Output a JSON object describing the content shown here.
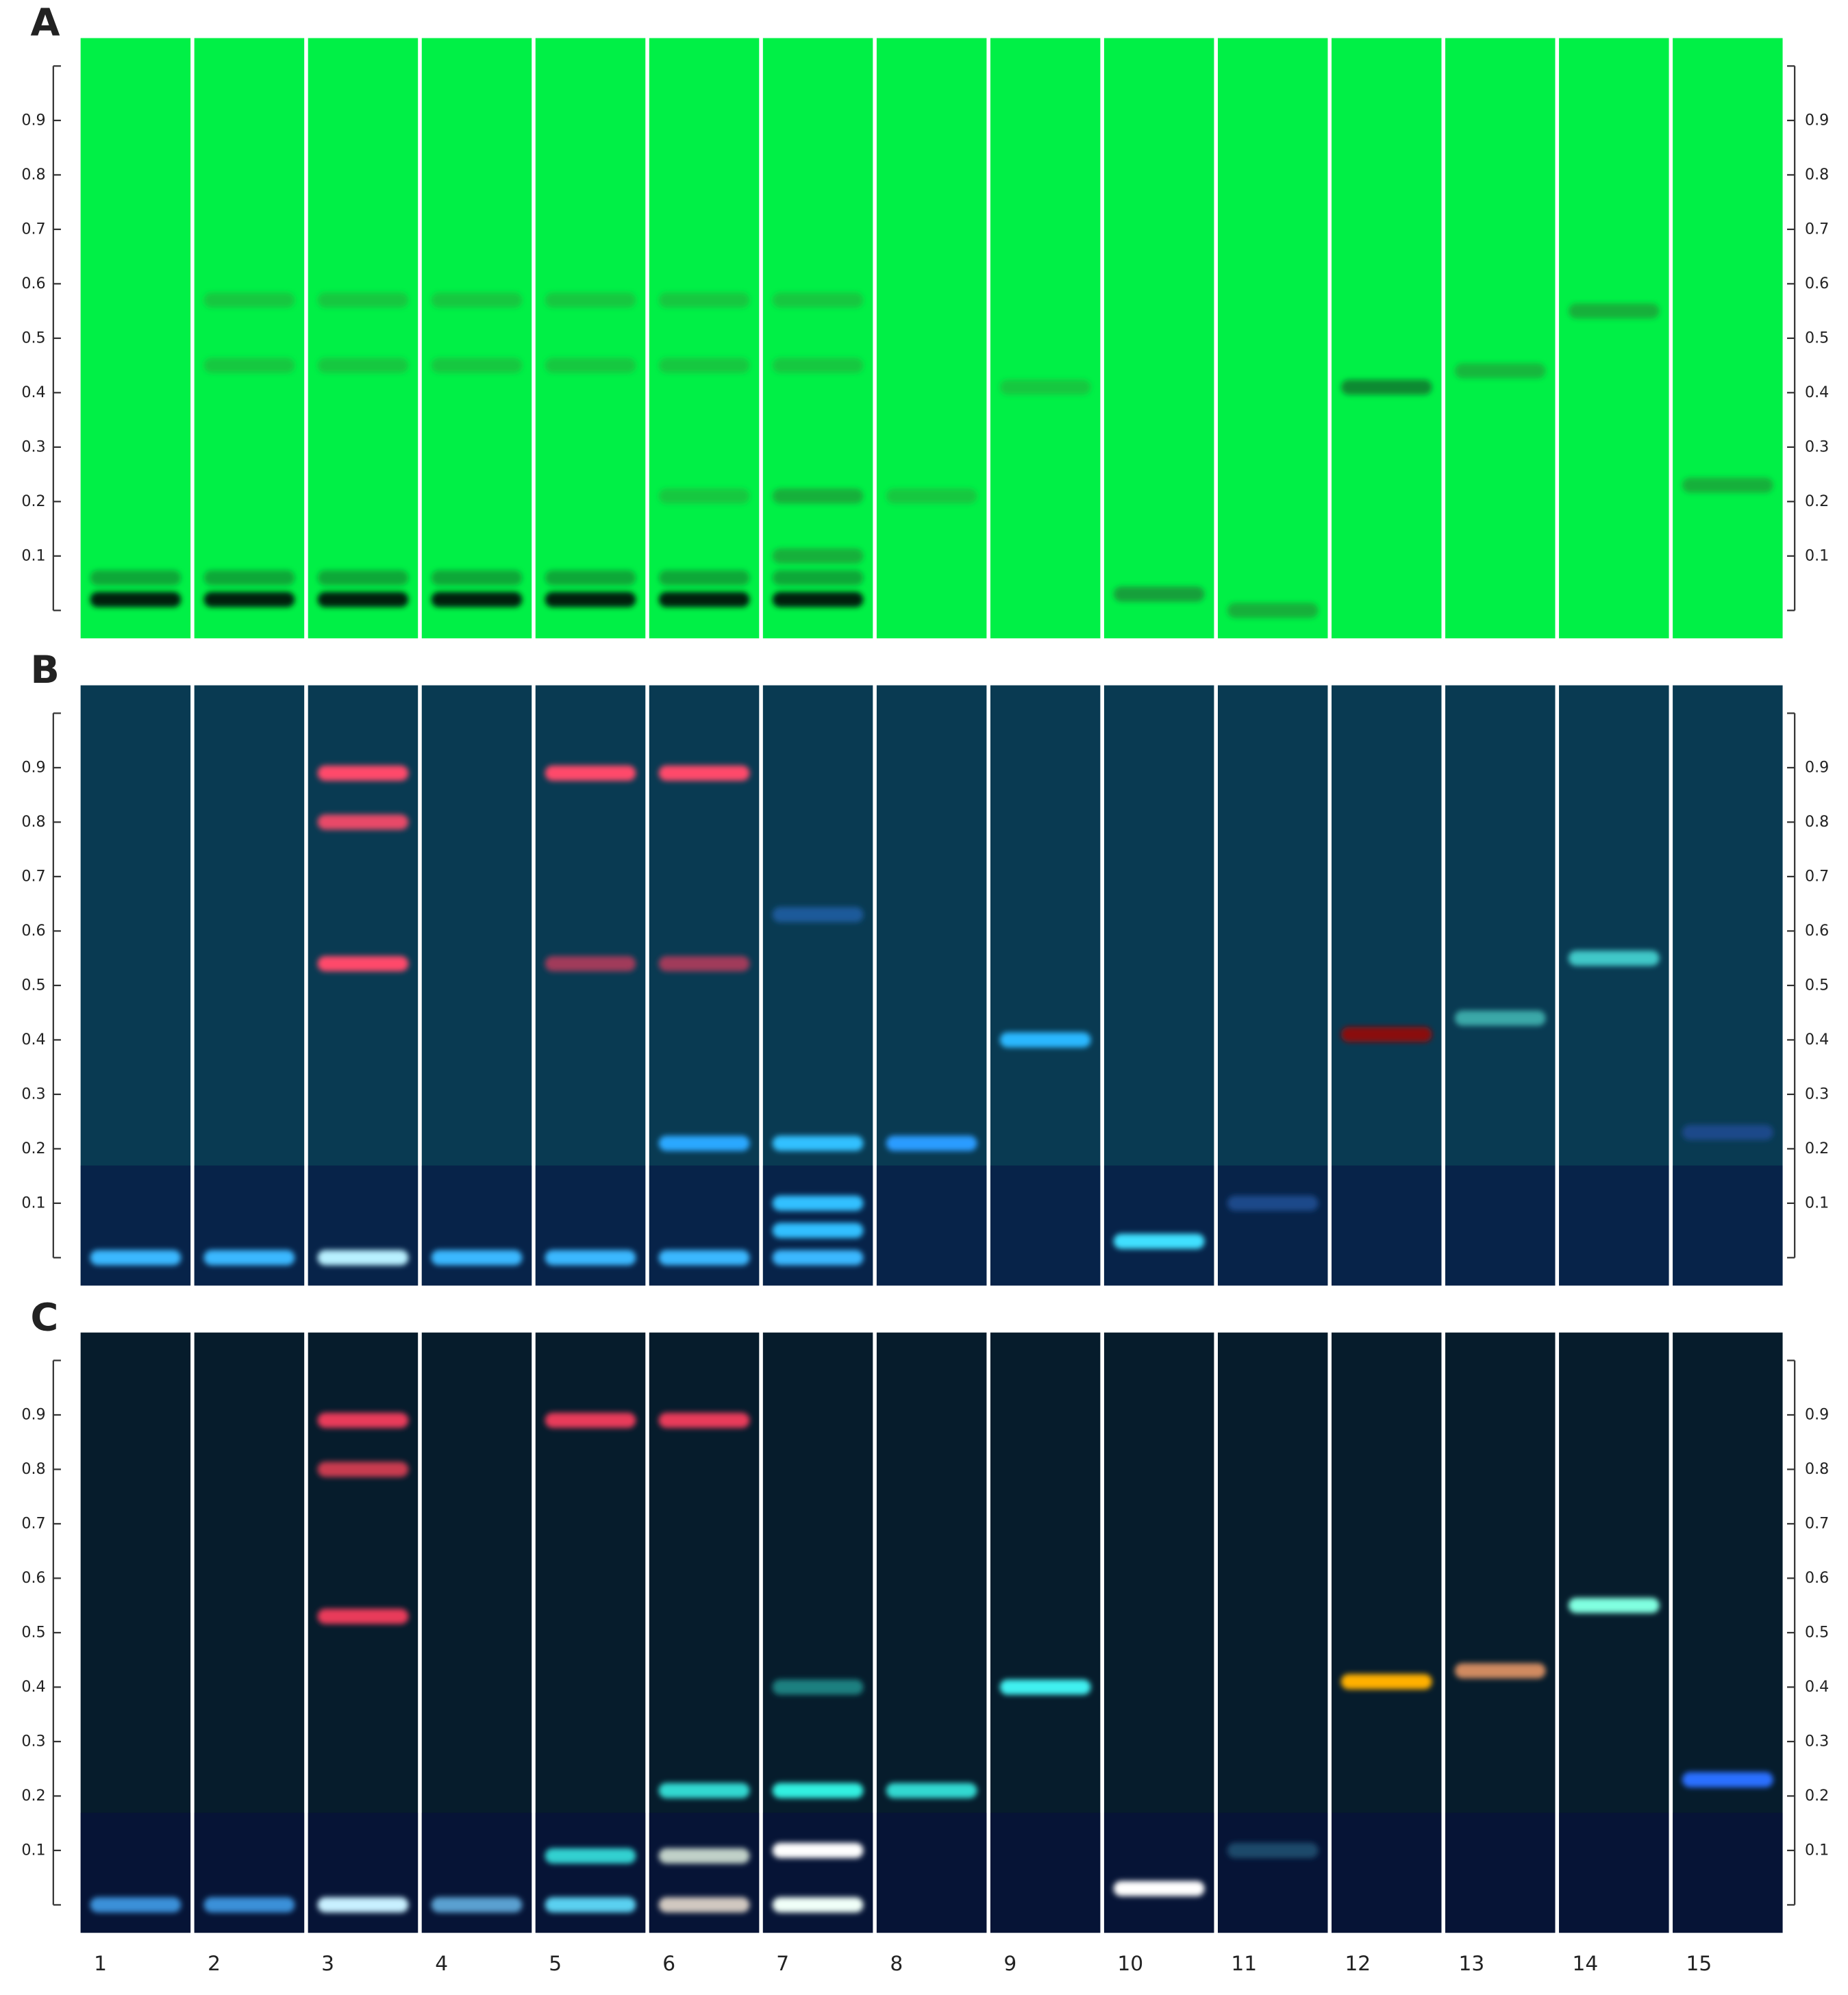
{
  "figure": {
    "lane_labels": [
      "1",
      "2",
      "3",
      "4",
      "5",
      "6",
      "7",
      "8",
      "9",
      "10",
      "11",
      "12",
      "13",
      "14",
      "15"
    ],
    "ylim": [
      0,
      1
    ],
    "yticks": [
      0.1,
      0.2,
      0.3,
      0.4,
      0.5,
      0.6,
      0.7,
      0.8,
      0.9
    ],
    "panels": [
      {
        "label": "A",
        "background": "#00f046",
        "bands": [
          {
            "lane": 1,
            "rf": 0.02,
            "color": "#062010"
          },
          {
            "lane": 2,
            "rf": 0.02,
            "color": "#062010"
          },
          {
            "lane": 3,
            "rf": 0.02,
            "color": "#062010"
          },
          {
            "lane": 4,
            "rf": 0.02,
            "color": "#062010"
          },
          {
            "lane": 5,
            "rf": 0.02,
            "color": "#062010"
          },
          {
            "lane": 6,
            "rf": 0.02,
            "color": "#062010"
          },
          {
            "lane": 7,
            "rf": 0.02,
            "color": "#062010"
          },
          {
            "lane": 1,
            "rf": 0.06,
            "color": "#0fa838"
          },
          {
            "lane": 2,
            "rf": 0.06,
            "color": "#0fa838"
          },
          {
            "lane": 3,
            "rf": 0.06,
            "color": "#0fa838"
          },
          {
            "lane": 4,
            "rf": 0.06,
            "color": "#0fa838"
          },
          {
            "lane": 5,
            "rf": 0.06,
            "color": "#0fa838"
          },
          {
            "lane": 6,
            "rf": 0.06,
            "color": "#0fa838"
          },
          {
            "lane": 7,
            "rf": 0.06,
            "color": "#0fa838"
          },
          {
            "lane": 2,
            "rf": 0.57,
            "color": "#18c840"
          },
          {
            "lane": 3,
            "rf": 0.57,
            "color": "#18c840"
          },
          {
            "lane": 4,
            "rf": 0.57,
            "color": "#18c840"
          },
          {
            "lane": 5,
            "rf": 0.57,
            "color": "#18c840"
          },
          {
            "lane": 6,
            "rf": 0.57,
            "color": "#18c840"
          },
          {
            "lane": 7,
            "rf": 0.57,
            "color": "#18c840"
          },
          {
            "lane": 2,
            "rf": 0.45,
            "color": "#18c840"
          },
          {
            "lane": 3,
            "rf": 0.45,
            "color": "#18c840"
          },
          {
            "lane": 4,
            "rf": 0.45,
            "color": "#18c840"
          },
          {
            "lane": 5,
            "rf": 0.45,
            "color": "#18c840"
          },
          {
            "lane": 6,
            "rf": 0.45,
            "color": "#18c840"
          },
          {
            "lane": 7,
            "rf": 0.45,
            "color": "#18c840"
          },
          {
            "lane": 6,
            "rf": 0.21,
            "color": "#18c840"
          },
          {
            "lane": 7,
            "rf": 0.21,
            "color": "#12b03a"
          },
          {
            "lane": 7,
            "rf": 0.1,
            "color": "#12b03a"
          },
          {
            "lane": 8,
            "rf": 0.21,
            "color": "#18c840"
          },
          {
            "lane": 9,
            "rf": 0.41,
            "color": "#18c840"
          },
          {
            "lane": 10,
            "rf": 0.03,
            "color": "#12a03a"
          },
          {
            "lane": 11,
            "rf": 0.0,
            "color": "#12b03a"
          },
          {
            "lane": 12,
            "rf": 0.41,
            "color": "#0c8a30"
          },
          {
            "lane": 13,
            "rf": 0.44,
            "color": "#14b83e"
          },
          {
            "lane": 14,
            "rf": 0.55,
            "color": "#12b03a"
          },
          {
            "lane": 15,
            "rf": 0.23,
            "color": "#12b03a"
          }
        ]
      },
      {
        "label": "B",
        "background": "#093a52",
        "bands": [
          {
            "lane": 1,
            "rf": 0.0,
            "color": "#3ab8ff"
          },
          {
            "lane": 2,
            "rf": 0.0,
            "color": "#3ab8ff"
          },
          {
            "lane": 3,
            "rf": 0.0,
            "color": "#b8f0ff"
          },
          {
            "lane": 4,
            "rf": 0.0,
            "color": "#3ab8ff"
          },
          {
            "lane": 5,
            "rf": 0.0,
            "color": "#3ab8ff"
          },
          {
            "lane": 6,
            "rf": 0.0,
            "color": "#3ab8ff"
          },
          {
            "lane": 7,
            "rf": 0.0,
            "color": "#3ab8ff"
          },
          {
            "lane": 3,
            "rf": 0.89,
            "color": "#ff4a6a"
          },
          {
            "lane": 3,
            "rf": 0.8,
            "color": "#e84a68"
          },
          {
            "lane": 3,
            "rf": 0.54,
            "color": "#ff4a6a"
          },
          {
            "lane": 5,
            "rf": 0.89,
            "color": "#ff4a6a"
          },
          {
            "lane": 6,
            "rf": 0.89,
            "color": "#ff4a6a"
          },
          {
            "lane": 5,
            "rf": 0.54,
            "color": "#a03a5a"
          },
          {
            "lane": 6,
            "rf": 0.54,
            "color": "#a03a5a"
          },
          {
            "lane": 6,
            "rf": 0.21,
            "color": "#2aa8ff"
          },
          {
            "lane": 7,
            "rf": 0.21,
            "color": "#30c0ff"
          },
          {
            "lane": 7,
            "rf": 0.1,
            "color": "#30c0ff"
          },
          {
            "lane": 7,
            "rf": 0.05,
            "color": "#30c0ff"
          },
          {
            "lane": 7,
            "rf": 0.63,
            "color": "#1a5a9a"
          },
          {
            "lane": 8,
            "rf": 0.21,
            "color": "#2a9cff"
          },
          {
            "lane": 9,
            "rf": 0.4,
            "color": "#2ab8ff"
          },
          {
            "lane": 10,
            "rf": 0.03,
            "color": "#40e0ff"
          },
          {
            "lane": 11,
            "rf": 0.1,
            "color": "#1a4a8a"
          },
          {
            "lane": 12,
            "rf": 0.41,
            "color": "#8a0a10"
          },
          {
            "lane": 13,
            "rf": 0.44,
            "color": "#3aa8a8"
          },
          {
            "lane": 14,
            "rf": 0.55,
            "color": "#40c8c8"
          },
          {
            "lane": 15,
            "rf": 0.23,
            "color": "#1a4a8a"
          }
        ]
      },
      {
        "label": "C",
        "background": "#061c2c",
        "bands": [
          {
            "lane": 1,
            "rf": 0.0,
            "color": "#3a90d8"
          },
          {
            "lane": 2,
            "rf": 0.0,
            "color": "#3a90d8"
          },
          {
            "lane": 3,
            "rf": 0.0,
            "color": "#c8f0ff"
          },
          {
            "lane": 4,
            "rf": 0.0,
            "color": "#5aa0d0"
          },
          {
            "lane": 5,
            "rf": 0.0,
            "color": "#5ad0f0"
          },
          {
            "lane": 6,
            "rf": 0.0,
            "color": "#d0c8c0"
          },
          {
            "lane": 7,
            "rf": 0.0,
            "color": "#f0fff8"
          },
          {
            "lane": 3,
            "rf": 0.89,
            "color": "#e83a5a"
          },
          {
            "lane": 3,
            "rf": 0.8,
            "color": "#c83a50"
          },
          {
            "lane": 3,
            "rf": 0.53,
            "color": "#e83a5a"
          },
          {
            "lane": 5,
            "rf": 0.89,
            "color": "#e83a5a"
          },
          {
            "lane": 6,
            "rf": 0.89,
            "color": "#e83a5a"
          },
          {
            "lane": 5,
            "rf": 0.09,
            "color": "#30d0d0"
          },
          {
            "lane": 6,
            "rf": 0.21,
            "color": "#30d8d0"
          },
          {
            "lane": 6,
            "rf": 0.09,
            "color": "#c0d0c8"
          },
          {
            "lane": 7,
            "rf": 0.21,
            "color": "#30f0e0"
          },
          {
            "lane": 7,
            "rf": 0.1,
            "color": "#ffffff"
          },
          {
            "lane": 7,
            "rf": 0.4,
            "color": "#1a8080"
          },
          {
            "lane": 8,
            "rf": 0.21,
            "color": "#30d8d0"
          },
          {
            "lane": 9,
            "rf": 0.4,
            "color": "#40f0f0"
          },
          {
            "lane": 10,
            "rf": 0.03,
            "color": "#ffffff"
          },
          {
            "lane": 11,
            "rf": 0.1,
            "color": "#1a4a6a"
          },
          {
            "lane": 12,
            "rf": 0.41,
            "color": "#ffb000"
          },
          {
            "lane": 13,
            "rf": 0.43,
            "color": "#d08a60"
          },
          {
            "lane": 14,
            "rf": 0.55,
            "color": "#80ffe0"
          },
          {
            "lane": 15,
            "rf": 0.23,
            "color": "#2a70ff"
          }
        ]
      }
    ]
  }
}
